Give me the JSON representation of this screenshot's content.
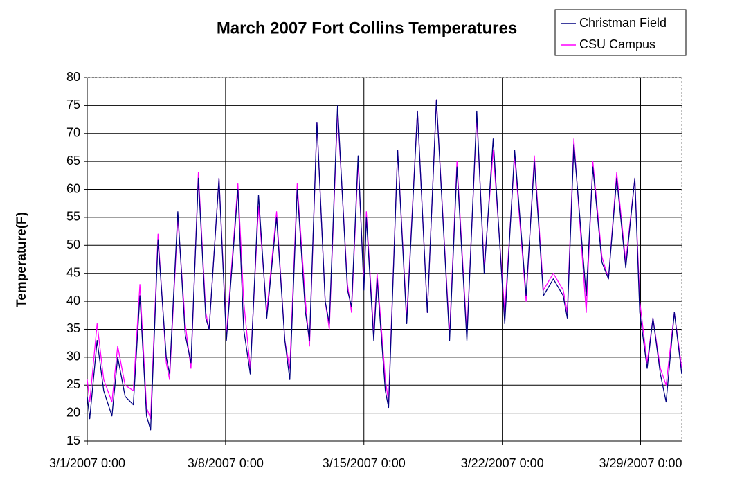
{
  "chart_data": {
    "type": "line",
    "title": "March 2007 Fort Collins Temperatures",
    "ylabel": "Temperature(F)",
    "x": [
      "2007-03-01 00:00",
      "2007-03-01 03:00",
      "2007-03-01 12:00",
      "2007-03-01 20:00",
      "2007-03-02 06:00",
      "2007-03-02 13:00",
      "2007-03-02 22:00",
      "2007-03-03 08:00",
      "2007-03-03 16:00",
      "2007-03-04 00:00",
      "2007-03-04 05:00",
      "2007-03-04 14:00",
      "2007-03-05 00:00",
      "2007-03-05 04:00",
      "2007-03-05 14:00",
      "2007-03-05 23:00",
      "2007-03-06 06:00",
      "2007-03-06 15:00",
      "2007-03-07 00:00",
      "2007-03-07 04:00",
      "2007-03-07 16:00",
      "2007-03-08 01:00",
      "2007-03-08 15:00",
      "2007-03-08 22:00",
      "2007-03-09 06:00",
      "2007-03-09 16:00",
      "2007-03-10 02:00",
      "2007-03-10 14:00",
      "2007-03-11 00:00",
      "2007-03-11 06:00",
      "2007-03-11 15:00",
      "2007-03-12 01:00",
      "2007-03-12 06:00",
      "2007-03-12 15:00",
      "2007-03-13 01:00",
      "2007-03-13 06:00",
      "2007-03-13 16:00",
      "2007-03-14 04:00",
      "2007-03-14 09:00",
      "2007-03-14 17:00",
      "2007-03-15 00:00",
      "2007-03-15 03:00",
      "2007-03-15 12:00",
      "2007-03-15 16:00",
      "2007-03-16 02:00",
      "2007-03-16 06:00",
      "2007-03-16 17:00",
      "2007-03-17 04:00",
      "2007-03-17 17:00",
      "2007-03-18 05:00",
      "2007-03-18 16:00",
      "2007-03-19 08:00",
      "2007-03-19 17:00",
      "2007-03-20 05:00",
      "2007-03-20 17:00",
      "2007-03-21 02:00",
      "2007-03-21 13:00",
      "2007-03-22 03:00",
      "2007-03-22 15:00",
      "2007-03-23 05:00",
      "2007-03-23 15:00",
      "2007-03-24 02:00",
      "2007-03-24 14:00",
      "2007-03-25 02:00",
      "2007-03-25 07:00",
      "2007-03-25 15:00",
      "2007-03-26 06:00",
      "2007-03-26 14:00",
      "2007-03-27 01:00",
      "2007-03-27 09:00",
      "2007-03-27 19:00",
      "2007-03-28 06:00",
      "2007-03-28 17:00",
      "2007-03-28 23:00",
      "2007-03-29 08:00",
      "2007-03-29 15:00",
      "2007-03-30 00:00",
      "2007-03-30 07:00",
      "2007-03-30 17:00",
      "2007-03-31 02:00"
    ],
    "series": [
      {
        "name": "Christman Field",
        "color": "#000080",
        "values": [
          23,
          19,
          33,
          24,
          19.5,
          30,
          23,
          21.5,
          41,
          19.5,
          17,
          51,
          30,
          27,
          56,
          34,
          29,
          62,
          37,
          35,
          62,
          33,
          60,
          35,
          27,
          59,
          37,
          55,
          33,
          26,
          60,
          38,
          33,
          72,
          40,
          36,
          75,
          42,
          39,
          66,
          42,
          55,
          33,
          44,
          24,
          21,
          67,
          36,
          74,
          38,
          76,
          33,
          64,
          33,
          74,
          45,
          69,
          36,
          67,
          41,
          65,
          41,
          44,
          41,
          37,
          68,
          41,
          64,
          47,
          44,
          62,
          46,
          62,
          38,
          28,
          37,
          27,
          22,
          38,
          27
        ]
      },
      {
        "name": "CSU Campus",
        "color": "#ff00ff",
        "values": [
          26,
          22,
          36,
          26,
          22,
          32,
          25,
          24,
          43,
          21,
          19,
          52,
          29,
          26,
          55,
          36,
          28,
          63,
          38,
          35,
          62,
          34,
          61,
          40,
          28,
          57,
          38,
          56,
          33,
          28,
          61,
          40,
          32,
          72,
          40,
          35,
          74,
          43,
          38,
          65,
          43,
          56,
          34,
          45,
          26,
          22,
          67,
          37,
          74,
          38,
          76,
          34,
          65,
          34,
          73,
          46,
          67,
          38,
          66,
          40,
          66,
          42,
          45,
          42,
          38,
          69,
          38,
          65,
          48,
          44,
          63,
          47,
          62,
          40,
          29,
          37,
          28,
          25,
          38,
          28
        ]
      }
    ],
    "xlim": [
      "2007-03-01 00:00",
      "2007-03-31 02:00"
    ],
    "xticks": [
      {
        "value": "2007-03-01 00:00",
        "label": "3/1/2007 0:00"
      },
      {
        "value": "2007-03-08 00:00",
        "label": "3/8/2007 0:00"
      },
      {
        "value": "2007-03-15 00:00",
        "label": "3/15/2007 0:00"
      },
      {
        "value": "2007-03-22 00:00",
        "label": "3/22/2007 0:00"
      },
      {
        "value": "2007-03-29 00:00",
        "label": "3/29/2007 0:00"
      }
    ],
    "ylim": [
      15,
      80
    ],
    "yticks": [
      15,
      20,
      25,
      30,
      35,
      40,
      45,
      50,
      55,
      60,
      65,
      70,
      75,
      80
    ],
    "grid": true,
    "legend": "top-right"
  }
}
